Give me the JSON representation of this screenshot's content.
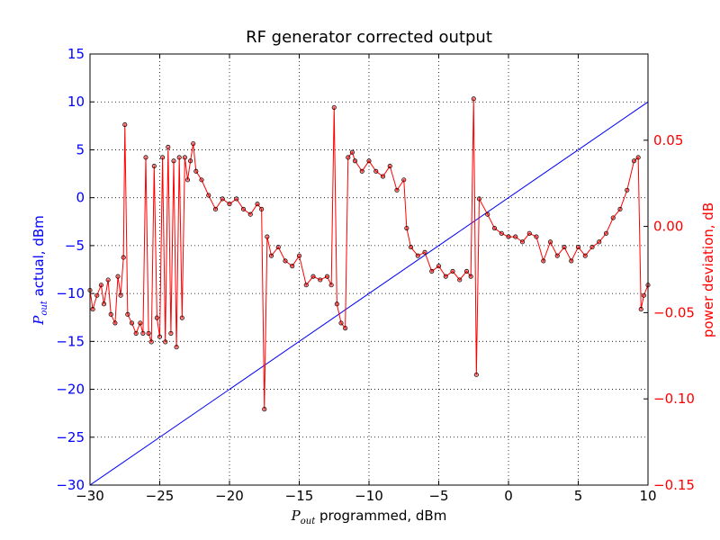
{
  "chart_data": {
    "type": "line",
    "title": "RF generator corrected output",
    "xlabel": [
      "P",
      "out",
      " programmed, dBm"
    ],
    "ylabel": [
      "P",
      "out",
      " actual, dBm"
    ],
    "y2label": "power deviation, dB",
    "xlim": [
      -30,
      10
    ],
    "ylim": [
      -30,
      15
    ],
    "y2lim": [
      -0.15,
      0.1
    ],
    "xticks": [
      {
        "value": -30,
        "label": "−30"
      },
      {
        "value": -25,
        "label": "−25"
      },
      {
        "value": -20,
        "label": "−20"
      },
      {
        "value": -15,
        "label": "−15"
      },
      {
        "value": -10,
        "label": "−10"
      },
      {
        "value": -5,
        "label": "−5"
      },
      0,
      5,
      10
    ],
    "yticks": [
      {
        "value": -30,
        "label": "−30"
      },
      {
        "value": -25,
        "label": "−25"
      },
      {
        "value": -20,
        "label": "−20"
      },
      {
        "value": -15,
        "label": "−15"
      },
      {
        "value": -10,
        "label": "−10"
      },
      {
        "value": -5,
        "label": "−5"
      },
      0,
      5,
      10,
      15
    ],
    "y2ticks": [
      {
        "value": -0.15,
        "label": "−0.15"
      },
      {
        "value": -0.1,
        "label": "−0.10"
      },
      {
        "value": -0.05,
        "label": "−0.05"
      },
      {
        "value": 0,
        "label": "0.00"
      },
      0.05
    ],
    "grid": true,
    "series": [
      {
        "color": "#0000ff",
        "x": [
          -30,
          10
        ],
        "values": [
          -30,
          10
        ]
      },
      {
        "color": "#ff0000",
        "axis": "y2",
        "marker": true,
        "x": [
          -30,
          -29.8,
          -29.5,
          -29.2,
          -29,
          -28.7,
          -28.5,
          -28.2,
          -28,
          -27.8,
          -27.6,
          -27.5,
          -27.3,
          -27,
          -26.7,
          -26.4,
          -26.2,
          -26,
          -25.8,
          -25.6,
          -25.4,
          -25.2,
          -25,
          -24.8,
          -24.6,
          -24.4,
          -24.2,
          -24,
          -23.8,
          -23.6,
          -23.4,
          -23.2,
          -23,
          -22.8,
          -22.6,
          -22.4,
          -22,
          -21.5,
          -21,
          -20.5,
          -20,
          -19.5,
          -19,
          -18.5,
          -18,
          -17.7,
          -17.5,
          -17.3,
          -17,
          -16.5,
          -16,
          -15.5,
          -15,
          -14.5,
          -14,
          -13.5,
          -13,
          -12.7,
          -12.5,
          -12.3,
          -12,
          -11.7,
          -11.5,
          -11.2,
          -11,
          -10.5,
          -10,
          -9.5,
          -9,
          -8.5,
          -8,
          -7.5,
          -7.3,
          -7,
          -6.5,
          -6,
          -5.5,
          -5,
          -4.5,
          -4,
          -3.5,
          -3,
          -2.7,
          -2.5,
          -2.3,
          -2.1,
          -1.5,
          -1,
          -0.5,
          0,
          0.5,
          1,
          1.5,
          2,
          2.5,
          3,
          3.5,
          4,
          4.5,
          5,
          5.5,
          6,
          6.5,
          7,
          7.5,
          8,
          8.5,
          9,
          9.3,
          9.5,
          9.7,
          10
        ],
        "values": [
          -0.037,
          -0.048,
          -0.04,
          -0.034,
          -0.045,
          -0.031,
          -0.051,
          -0.056,
          -0.029,
          -0.04,
          -0.018,
          0.059,
          -0.051,
          -0.056,
          -0.062,
          -0.056,
          -0.062,
          0.04,
          -0.062,
          -0.067,
          0.035,
          -0.053,
          -0.064,
          0.04,
          -0.067,
          0.046,
          -0.062,
          0.038,
          -0.07,
          0.04,
          -0.053,
          0.04,
          0.027,
          0.038,
          0.048,
          0.032,
          0.027,
          0.018,
          0.01,
          0.016,
          0.013,
          0.016,
          0.01,
          0.007,
          0.013,
          0.01,
          -0.106,
          -0.006,
          -0.017,
          -0.012,
          -0.02,
          -0.023,
          -0.017,
          -0.034,
          -0.029,
          -0.031,
          -0.029,
          -0.034,
          0.069,
          -0.045,
          -0.056,
          -0.059,
          0.04,
          0.043,
          0.038,
          0.032,
          0.038,
          0.032,
          0.029,
          0.035,
          0.021,
          0.027,
          -0.001,
          -0.012,
          -0.017,
          -0.015,
          -0.026,
          -0.023,
          -0.029,
          -0.026,
          -0.031,
          -0.026,
          -0.029,
          0.074,
          -0.086,
          0.016,
          0.007,
          -0.001,
          -0.004,
          -0.006,
          -0.006,
          -0.009,
          -0.004,
          -0.006,
          -0.02,
          -0.009,
          -0.017,
          -0.012,
          -0.02,
          -0.012,
          -0.017,
          -0.012,
          -0.009,
          -0.004,
          0.005,
          0.01,
          0.021,
          0.038,
          0.04,
          -0.048,
          -0.04,
          -0.034
        ]
      }
    ]
  }
}
